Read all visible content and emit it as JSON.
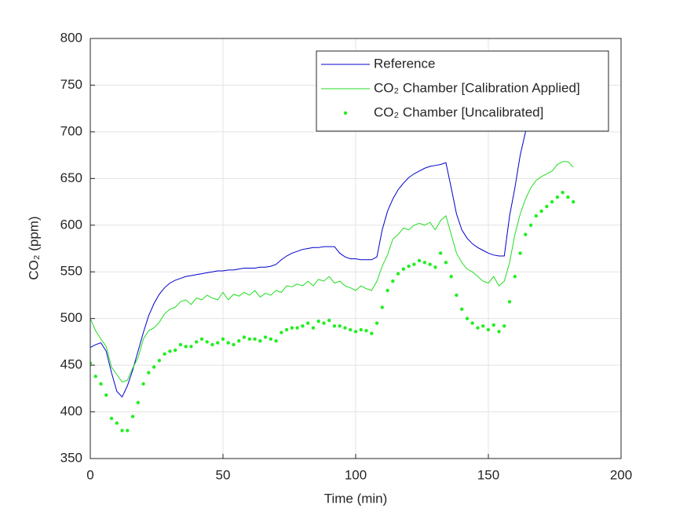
{
  "chart_data": {
    "type": "line",
    "xlabel": "Time (min)",
    "ylabel": "CO₂ (ppm)",
    "xlim": [
      0,
      200
    ],
    "xticks": [
      0,
      50,
      100,
      150,
      200
    ],
    "ylim": [
      350,
      800
    ],
    "yticks": [
      350,
      400,
      450,
      500,
      550,
      600,
      650,
      700,
      750,
      800
    ],
    "grid": true,
    "legend": "northeast",
    "x": [
      0,
      2,
      4,
      6,
      8,
      10,
      12,
      14,
      16,
      18,
      20,
      22,
      24,
      26,
      28,
      30,
      32,
      34,
      36,
      38,
      40,
      42,
      44,
      46,
      48,
      50,
      52,
      54,
      56,
      58,
      60,
      62,
      64,
      66,
      68,
      70,
      72,
      74,
      76,
      78,
      80,
      82,
      84,
      86,
      88,
      90,
      92,
      94,
      96,
      98,
      100,
      102,
      104,
      106,
      108,
      110,
      112,
      114,
      116,
      118,
      120,
      122,
      124,
      126,
      128,
      130,
      132,
      134,
      136,
      138,
      140,
      142,
      144,
      146,
      148,
      150,
      152,
      154,
      156,
      158,
      160,
      162,
      164,
      166,
      168,
      170,
      172,
      174,
      176,
      178,
      180,
      182
    ],
    "series": [
      {
        "name": "Reference",
        "color": "#0000cc",
        "style": "line",
        "values": [
          469,
          472,
          474,
          465,
          442,
          422,
          416,
          428,
          445,
          465,
          485,
          503,
          516,
          526,
          533,
          538,
          541,
          543,
          545,
          546,
          547,
          548,
          549,
          550,
          551,
          551,
          552,
          552,
          553,
          554,
          554,
          554,
          555,
          555,
          556,
          558,
          563,
          567,
          570,
          572,
          574,
          575,
          576,
          576,
          577,
          577,
          577,
          570,
          566,
          564,
          564,
          563,
          563,
          563,
          566,
          595,
          615,
          628,
          638,
          645,
          651,
          655,
          658,
          661,
          663,
          664,
          665,
          667,
          640,
          612,
          595,
          586,
          580,
          576,
          573,
          570,
          568,
          567,
          567,
          610,
          640,
          675,
          700,
          720,
          735,
          745,
          752,
          758,
          762,
          765,
          767,
          768
        ]
      },
      {
        "name": "CO₂ Chamber [Calibration Applied]",
        "color": "#22dd22",
        "style": "line",
        "values": [
          500,
          487,
          478,
          470,
          448,
          440,
          432,
          434,
          447,
          458,
          478,
          487,
          490,
          496,
          505,
          510,
          512,
          518,
          520,
          515,
          522,
          520,
          525,
          522,
          520,
          528,
          520,
          526,
          524,
          528,
          525,
          530,
          523,
          527,
          525,
          530,
          528,
          535,
          534,
          537,
          535,
          540,
          535,
          542,
          540,
          545,
          538,
          540,
          535,
          533,
          530,
          535,
          532,
          530,
          540,
          556,
          568,
          585,
          590,
          597,
          595,
          600,
          602,
          600,
          603,
          595,
          605,
          610,
          590,
          570,
          560,
          553,
          550,
          545,
          540,
          538,
          545,
          535,
          540,
          560,
          590,
          612,
          628,
          640,
          648,
          652,
          655,
          658,
          665,
          668,
          668,
          662
        ]
      },
      {
        "name": "CO₂ Chamber [Uncalibrated]",
        "color": "#22ee22",
        "style": "dots",
        "values": [
          452,
          438,
          430,
          418,
          393,
          388,
          380,
          380,
          395,
          410,
          430,
          442,
          448,
          455,
          462,
          465,
          466,
          472,
          470,
          470,
          475,
          478,
          475,
          472,
          474,
          478,
          474,
          472,
          476,
          480,
          478,
          478,
          476,
          480,
          478,
          476,
          485,
          488,
          490,
          490,
          492,
          495,
          490,
          497,
          495,
          498,
          492,
          492,
          490,
          488,
          486,
          488,
          487,
          484,
          495,
          512,
          530,
          540,
          548,
          553,
          556,
          558,
          562,
          560,
          558,
          555,
          570,
          560,
          545,
          525,
          510,
          500,
          495,
          490,
          492,
          488,
          493,
          486,
          492,
          518,
          545,
          570,
          590,
          600,
          610,
          615,
          620,
          625,
          630,
          635,
          630,
          625
        ]
      }
    ]
  }
}
